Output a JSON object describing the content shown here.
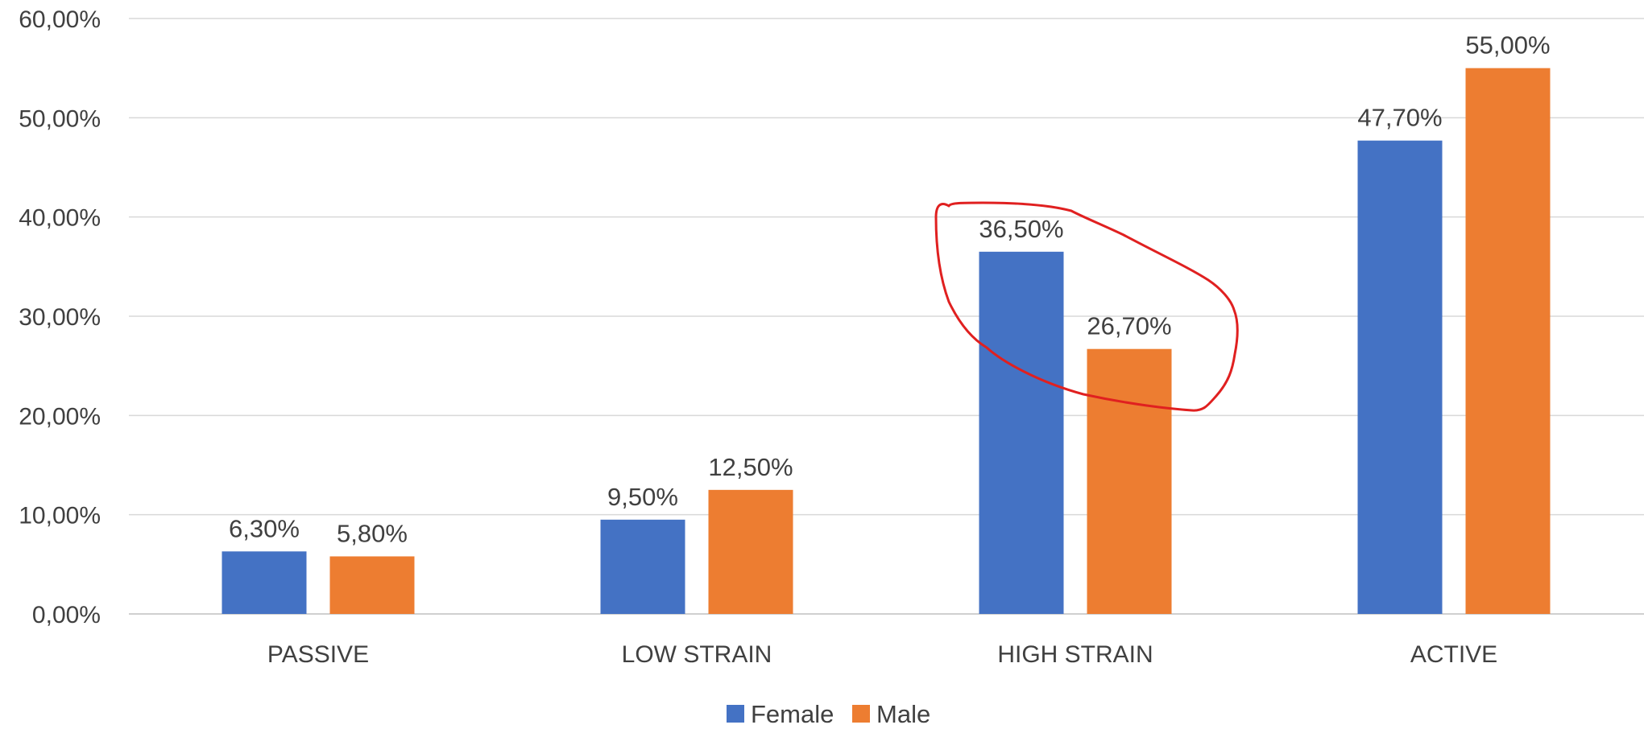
{
  "chart_data": {
    "type": "bar",
    "title": "",
    "xlabel": "",
    "ylabel": "",
    "categories": [
      "PASSIVE",
      "LOW STRAIN",
      "HIGH STRAIN",
      "ACTIVE"
    ],
    "series": [
      {
        "name": "Female",
        "color": "#4472c4",
        "values": [
          6.3,
          9.5,
          36.5,
          47.7
        ],
        "labels": [
          "6,30%",
          "9,50%",
          "36,50%",
          "47,70%"
        ]
      },
      {
        "name": "Male",
        "color": "#ed7d31",
        "values": [
          5.8,
          12.5,
          26.7,
          55.0
        ],
        "labels": [
          "5,80%",
          "12,50%",
          "26,70%",
          "55,00%"
        ]
      }
    ],
    "ylim": [
      0,
      60
    ],
    "yticks": [
      "0,00%",
      "10,00%",
      "20,00%",
      "30,00%",
      "40,00%",
      "50,00%",
      "60,00%"
    ],
    "grid": true,
    "legend_position": "bottom",
    "annotation": {
      "type": "hand-drawn circle",
      "target_category": "HIGH STRAIN",
      "color": "#e02020"
    }
  }
}
